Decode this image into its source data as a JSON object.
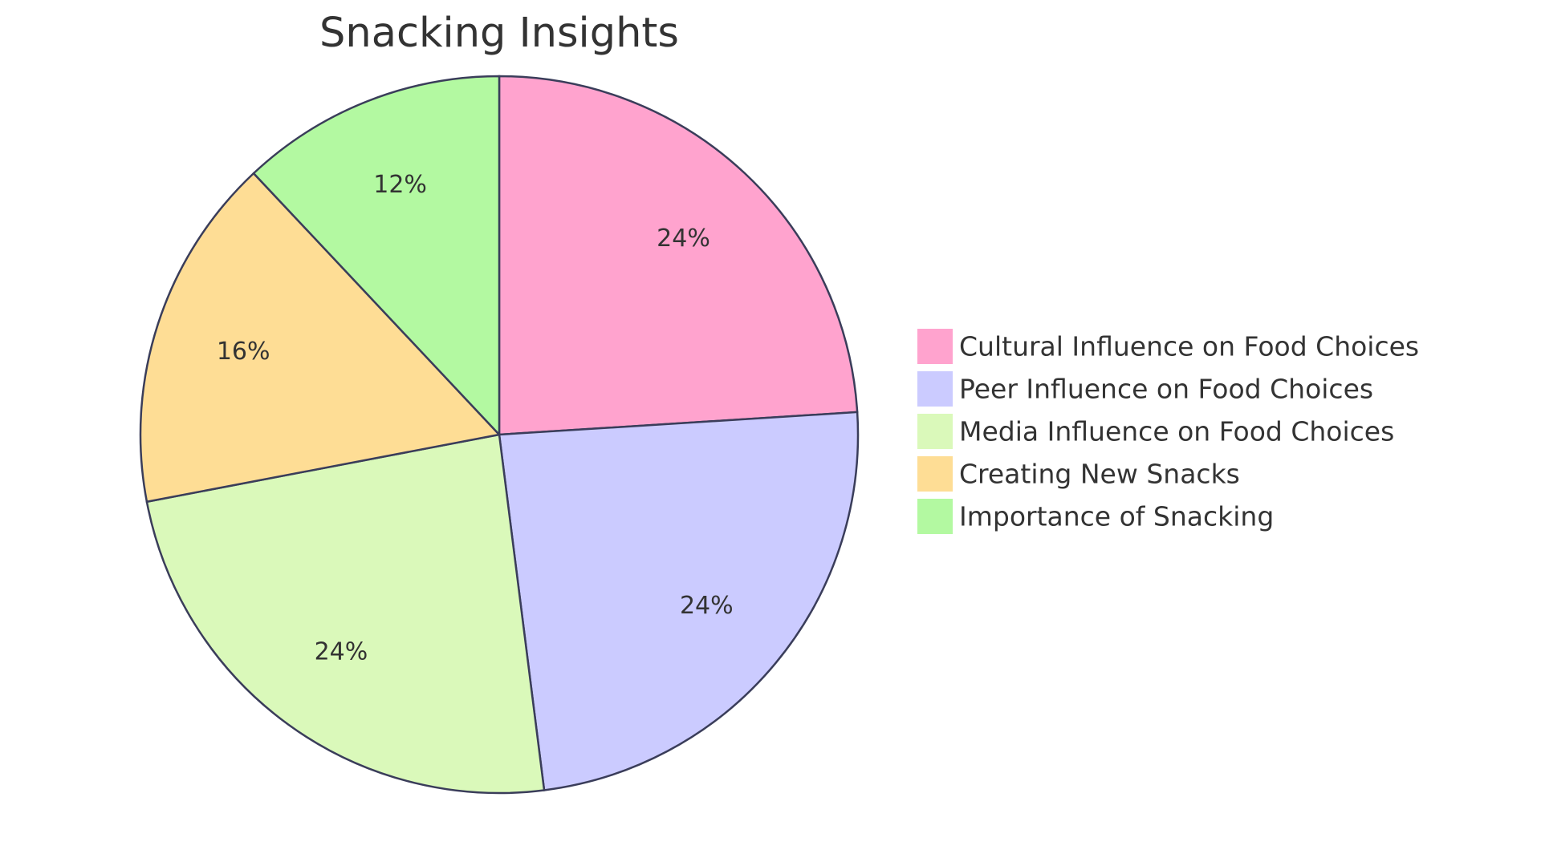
{
  "chart_data": {
    "type": "pie",
    "title": "Snacking Insights",
    "slices": [
      {
        "label": "Cultural Influence on Food Choices",
        "value": 24,
        "display": "24%",
        "color": "#FFA3CE"
      },
      {
        "label": "Peer Influence on Food Choices",
        "value": 24,
        "display": "24%",
        "color": "#CBCBFF"
      },
      {
        "label": "Media Influence on Food Choices",
        "value": 24,
        "display": "24%",
        "color": "#DAF9BA"
      },
      {
        "label": "Creating New Snacks",
        "value": 16,
        "display": "16%",
        "color": "#FEDD95"
      },
      {
        "label": "Importance of Snacking",
        "value": 12,
        "display": "12%",
        "color": "#B3F9A1"
      }
    ],
    "legend_placement": "right",
    "stroke_color": "#3A3D5A"
  }
}
